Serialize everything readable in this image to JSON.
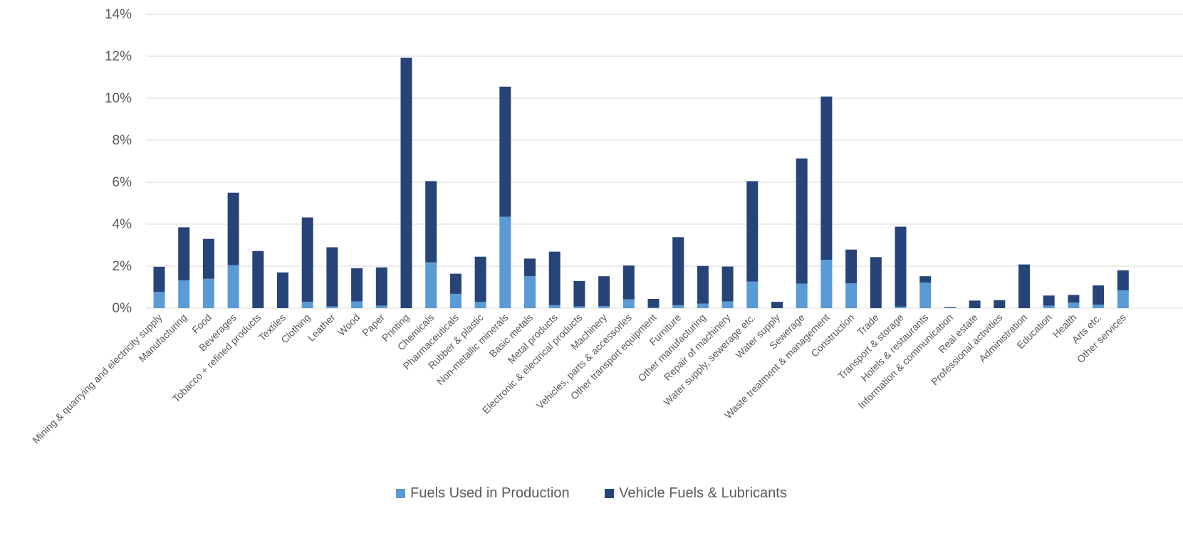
{
  "chart_data": {
    "type": "bar",
    "stacked": true,
    "title": "",
    "xlabel": "",
    "ylabel": "",
    "ylim": [
      0,
      14
    ],
    "y_ticks": [
      "0%",
      "2%",
      "4%",
      "6%",
      "8%",
      "10%",
      "12%",
      "14%"
    ],
    "grid": true,
    "legend_position": "bottom",
    "categories": [
      "Mining & quarrying and electricity supply",
      "Manufacturing",
      "Food",
      "Beverages",
      "Tobacco + refined products",
      "Textiles",
      "Clothing",
      "Leather",
      "Wood",
      "Paper",
      "Printing",
      "Chemicals",
      "Pharmaceuticals",
      "Rubber & plastic",
      "Non-metallic minerals",
      "Basic metals",
      "Metal products",
      "Electronic & electrical products",
      "Machinery",
      "Vehicles, parts & accessories",
      "Other transport equipment",
      "Furniture",
      "Other manufacturing",
      "Repair of machinery",
      "Water supply, sewerage etc.",
      "Water supply",
      "Sewerage",
      "Waste treatment & management",
      "Construction",
      "Trade",
      "Transport & storage",
      "Hotels & restaurants",
      "Information & communication",
      "Real estate",
      "Professional activities",
      "Administration",
      "Education",
      "Health",
      "Arts etc.",
      "Other services"
    ],
    "series": [
      {
        "name": "Fuels Used in Production",
        "color": "#5b9bd5",
        "values": [
          0.78,
          1.32,
          1.4,
          2.05,
          0.0,
          0.0,
          0.3,
          0.08,
          0.32,
          0.12,
          0.0,
          2.18,
          0.68,
          0.3,
          4.35,
          1.52,
          0.14,
          0.08,
          0.1,
          0.42,
          0.02,
          0.14,
          0.22,
          0.32,
          1.27,
          0.0,
          1.17,
          2.3,
          1.18,
          0.0,
          0.07,
          1.22,
          0.03,
          0.0,
          0.0,
          0.0,
          0.12,
          0.26,
          0.16,
          0.85
        ]
      },
      {
        "name": "Vehicle Fuels & Lubricants",
        "color": "#264478",
        "values": [
          1.19,
          2.53,
          1.9,
          3.45,
          2.72,
          1.7,
          4.02,
          2.82,
          1.58,
          1.82,
          11.93,
          3.87,
          0.96,
          2.15,
          6.2,
          0.84,
          2.55,
          1.21,
          1.42,
          1.61,
          0.42,
          3.24,
          1.79,
          1.66,
          4.78,
          0.3,
          5.96,
          7.78,
          1.61,
          2.43,
          3.81,
          0.3,
          0.03,
          0.36,
          0.38,
          2.08,
          0.48,
          0.37,
          0.92,
          0.95
        ]
      }
    ]
  }
}
